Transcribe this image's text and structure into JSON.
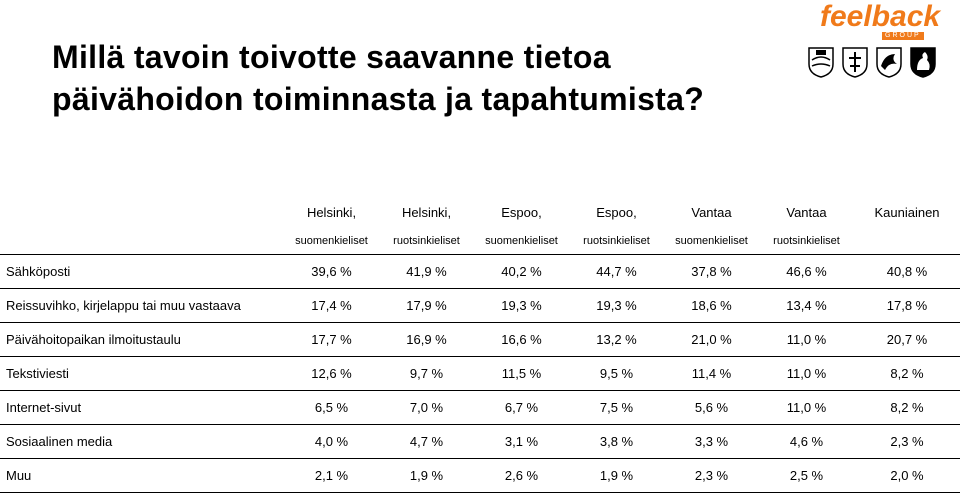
{
  "title": {
    "line1": "Millä tavoin toivotte saavanne tietoa",
    "line2": "päivähoidon toiminnasta ja tapahtumista?"
  },
  "logo": {
    "word": "feelback",
    "group": "GROUP"
  },
  "columns": [
    {
      "city": "Helsinki,",
      "lang": "suomenkieliset"
    },
    {
      "city": "Helsinki,",
      "lang": "ruotsinkieliset"
    },
    {
      "city": "Espoo,",
      "lang": "suomenkieliset"
    },
    {
      "city": "Espoo,",
      "lang": "ruotsinkieliset"
    },
    {
      "city": "Vantaa",
      "lang": "suomenkieliset"
    },
    {
      "city": "Vantaa",
      "lang": "ruotsinkieliset"
    },
    {
      "city": "Kauniainen",
      "lang": ""
    }
  ],
  "rows": [
    {
      "label": "Sähköposti",
      "values": [
        "39,6 %",
        "41,9 %",
        "40,2 %",
        "44,7 %",
        "37,8 %",
        "46,6 %",
        "40,8 %"
      ]
    },
    {
      "label": "Reissuvihko, kirjelappu tai muu vastaava",
      "values": [
        "17,4 %",
        "17,9 %",
        "19,3 %",
        "19,3 %",
        "18,6 %",
        "13,4 %",
        "17,8 %"
      ]
    },
    {
      "label": "Päivähoitopaikan ilmoitustaulu",
      "values": [
        "17,7 %",
        "16,9 %",
        "16,6 %",
        "13,2 %",
        "21,0 %",
        "11,0 %",
        "20,7 %"
      ]
    },
    {
      "label": "Tekstiviesti",
      "values": [
        "12,6 %",
        "9,7 %",
        "11,5 %",
        "9,5 %",
        "11,4 %",
        "11,0 %",
        "8,2 %"
      ]
    },
    {
      "label": "Internet-sivut",
      "values": [
        "6,5 %",
        "7,0 %",
        "6,7 %",
        "7,5 %",
        "5,6 %",
        "11,0 %",
        "8,2 %"
      ]
    },
    {
      "label": "Sosiaalinen media",
      "values": [
        "4,0 %",
        "4,7 %",
        "3,1 %",
        "3,8 %",
        "3,3 %",
        "4,6 %",
        "2,3 %"
      ]
    },
    {
      "label": "Muu",
      "values": [
        "2,1 %",
        "1,9 %",
        "2,6 %",
        "1,9 %",
        "2,3 %",
        "2,5 %",
        "2,0 %"
      ]
    }
  ]
}
